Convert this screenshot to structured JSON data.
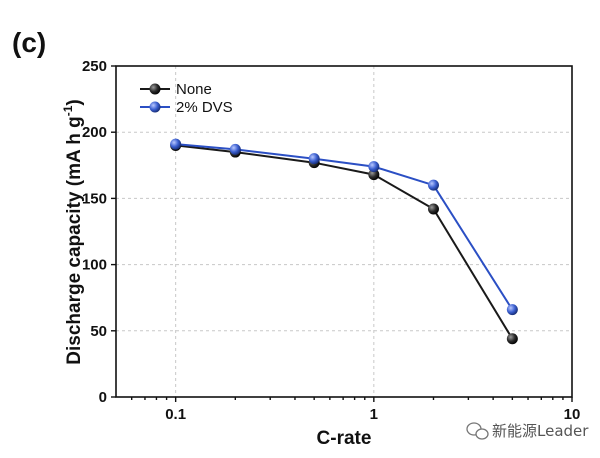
{
  "panel_label": "(c)",
  "watermark": {
    "text": "新能源Leader",
    "icon": "wechat-icon"
  },
  "chart_data": {
    "type": "line",
    "x_scale": "log",
    "xlabel": "C-rate",
    "ylabel_main": "Discharge capacity (mA h g",
    "ylabel_sup": "-1",
    "ylabel_close": ")",
    "xlim": [
      0.05,
      10
    ],
    "ylim": [
      0,
      250
    ],
    "x_ticks": [
      0.1,
      1,
      10
    ],
    "x_tick_labels": [
      "0.1",
      "1",
      "10"
    ],
    "y_ticks": [
      0,
      50,
      100,
      150,
      200,
      250
    ],
    "y_tick_labels": [
      "0",
      "50",
      "100",
      "150",
      "200",
      "250"
    ],
    "grid": true,
    "legend_position": "top-left",
    "series": [
      {
        "name": "None",
        "color": "#1a1a1a",
        "marker_color": "#2a2a2a",
        "x": [
          0.1,
          0.2,
          0.5,
          1,
          2,
          5
        ],
        "values": [
          190,
          185,
          177,
          168,
          142,
          44
        ]
      },
      {
        "name": "2% DVS",
        "color": "#2b4fc4",
        "marker_color": "#3b5fd0",
        "x": [
          0.1,
          0.2,
          0.5,
          1,
          2,
          5
        ],
        "values": [
          191,
          187,
          180,
          174,
          160,
          66
        ]
      }
    ]
  }
}
